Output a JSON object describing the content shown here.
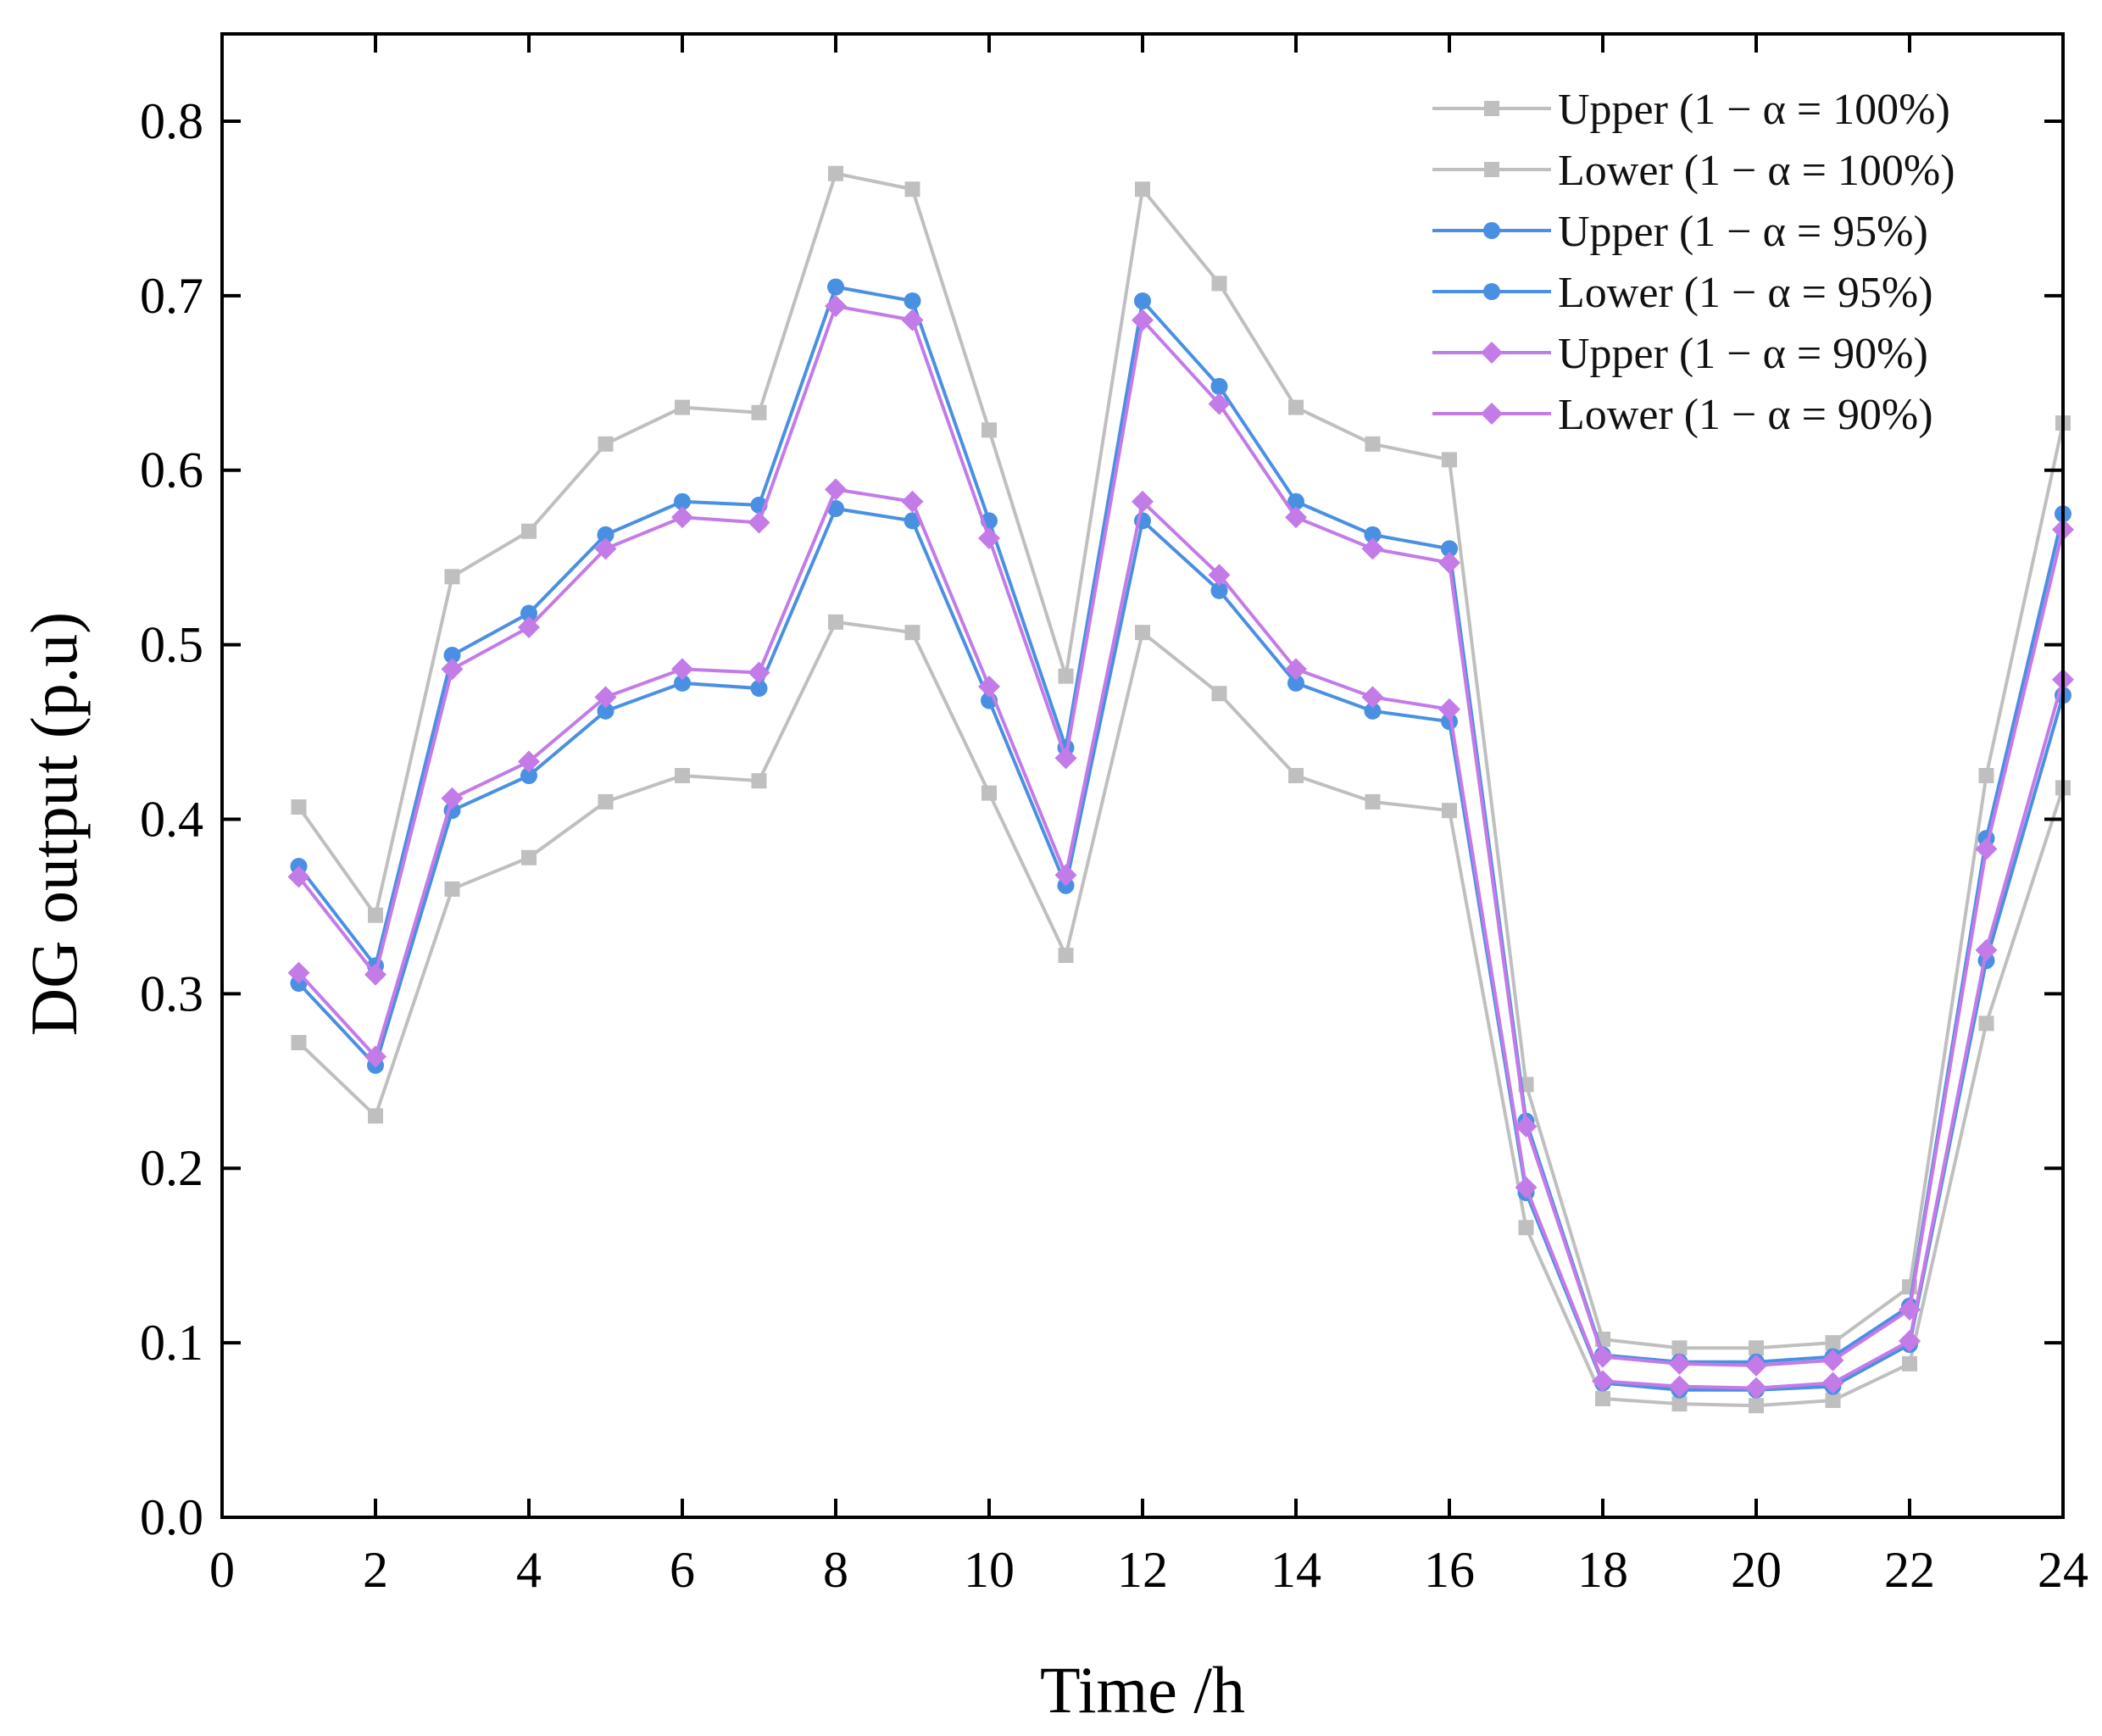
{
  "chart_data": {
    "type": "line",
    "title": "",
    "xlabel": "Time /h",
    "ylabel": "DG output (p.u)",
    "xlim": [
      0,
      24
    ],
    "ylim": [
      0.0,
      0.85
    ],
    "grid": false,
    "legend_position": "top-right",
    "x_ticks": [
      0,
      2,
      4,
      6,
      8,
      10,
      12,
      14,
      16,
      18,
      20,
      22,
      24
    ],
    "x_tick_labels": [
      "0",
      "2",
      "4",
      "6",
      "8",
      "10",
      "12",
      "14",
      "16",
      "18",
      "20",
      "22",
      "24"
    ],
    "y_ticks": [
      0.0,
      0.1,
      0.2,
      0.3,
      0.4,
      0.5,
      0.6,
      0.7,
      0.8
    ],
    "y_tick_labels": [
      "0.0",
      "0.1",
      "0.2",
      "0.3",
      "0.4",
      "0.5",
      "0.6",
      "0.7",
      "0.8"
    ],
    "x": [
      1,
      2,
      3,
      4,
      5,
      6,
      7,
      8,
      9,
      10,
      11,
      12,
      13,
      14,
      15,
      16,
      17,
      18,
      19,
      20,
      21,
      22,
      23,
      24
    ],
    "series": [
      {
        "name": "Upper (1 − α = 100%)",
        "color": "#bfbfbf",
        "marker": "square",
        "values": [
          0.407,
          0.345,
          0.539,
          0.565,
          0.615,
          0.636,
          0.633,
          0.77,
          0.761,
          0.623,
          0.482,
          0.761,
          0.707,
          0.636,
          0.615,
          0.606,
          0.248,
          0.102,
          0.097,
          0.097,
          0.1,
          0.132,
          0.425,
          0.627
        ]
      },
      {
        "name": "Lower (1 − α = 100%)",
        "color": "#bfbfbf",
        "marker": "square",
        "values": [
          0.272,
          0.23,
          0.36,
          0.378,
          0.41,
          0.425,
          0.422,
          0.513,
          0.507,
          0.415,
          0.322,
          0.507,
          0.472,
          0.425,
          0.41,
          0.405,
          0.166,
          0.068,
          0.065,
          0.064,
          0.067,
          0.088,
          0.283,
          0.418
        ]
      },
      {
        "name": "Upper (1 − α = 95%)",
        "color": "#4a90e2",
        "marker": "circle",
        "values": [
          0.373,
          0.316,
          0.494,
          0.518,
          0.563,
          0.582,
          0.58,
          0.705,
          0.697,
          0.571,
          0.441,
          0.697,
          0.648,
          0.582,
          0.563,
          0.555,
          0.227,
          0.093,
          0.089,
          0.089,
          0.092,
          0.121,
          0.389,
          0.575
        ]
      },
      {
        "name": "Lower (1 − α = 95%)",
        "color": "#4a90e2",
        "marker": "circle",
        "values": [
          0.306,
          0.259,
          0.405,
          0.425,
          0.462,
          0.478,
          0.475,
          0.578,
          0.571,
          0.468,
          0.362,
          0.571,
          0.531,
          0.478,
          0.462,
          0.456,
          0.186,
          0.077,
          0.073,
          0.073,
          0.075,
          0.099,
          0.319,
          0.471
        ]
      },
      {
        "name": "Upper (1 − α = 90%)",
        "color": "#c37be8",
        "marker": "diamond",
        "values": [
          0.367,
          0.311,
          0.486,
          0.51,
          0.555,
          0.573,
          0.57,
          0.694,
          0.686,
          0.561,
          0.435,
          0.686,
          0.638,
          0.573,
          0.555,
          0.547,
          0.224,
          0.092,
          0.088,
          0.087,
          0.09,
          0.119,
          0.383,
          0.566
        ]
      },
      {
        "name": "Lower (1 − α = 90%)",
        "color": "#c37be8",
        "marker": "diamond",
        "values": [
          0.312,
          0.264,
          0.412,
          0.433,
          0.47,
          0.486,
          0.484,
          0.589,
          0.582,
          0.476,
          0.368,
          0.582,
          0.54,
          0.486,
          0.47,
          0.463,
          0.189,
          0.078,
          0.075,
          0.074,
          0.077,
          0.101,
          0.325,
          0.48
        ]
      }
    ]
  }
}
